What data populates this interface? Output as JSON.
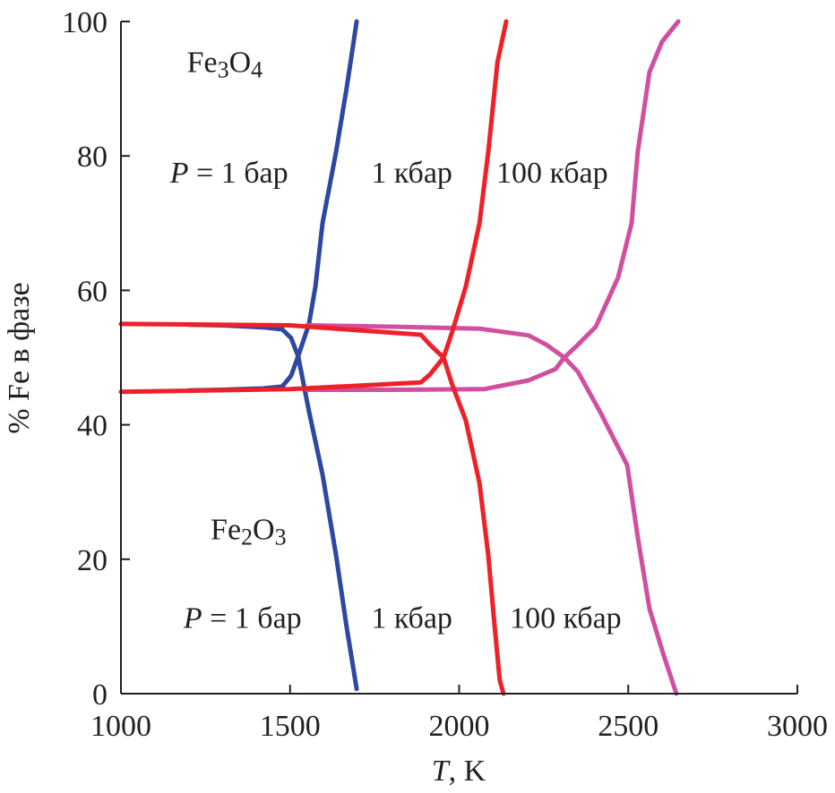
{
  "chart_data": {
    "type": "line",
    "xlabel": "T, K",
    "ylabel": "% Fe в фазе",
    "xlim": [
      1000,
      3000
    ],
    "ylim": [
      0,
      100
    ],
    "xticks": [
      1000,
      1500,
      2000,
      2500,
      3000
    ],
    "yticks": [
      0,
      20,
      40,
      60,
      80,
      100
    ],
    "grid": false,
    "colors": {
      "p1bar": "#2e47a0",
      "p1kbar": "#ee2028",
      "p100kbar": "#d04fa0"
    },
    "series": [
      {
        "key": "p1bar",
        "color": "#2e47a0",
        "segments": [
          [
            [
              1200,
              54.9
            ],
            [
              1300,
              54.8
            ],
            [
              1420,
              54.5
            ],
            [
              1477,
              54.2
            ],
            [
              1503,
              52.9
            ],
            [
              1524,
              50.2
            ]
          ],
          [
            [
              1200,
              45.1
            ],
            [
              1300,
              45.2
            ],
            [
              1420,
              45.4
            ],
            [
              1477,
              45.7
            ],
            [
              1503,
              47.3
            ],
            [
              1524,
              50.2
            ]
          ],
          [
            [
              1524,
              50.2
            ],
            [
              1556,
              55
            ],
            [
              1575,
              60.6
            ],
            [
              1596,
              70
            ],
            [
              1636,
              80.6
            ],
            [
              1667,
              90
            ],
            [
              1697,
              100
            ]
          ],
          [
            [
              1524,
              50.2
            ],
            [
              1556,
              42
            ],
            [
              1596,
              32.6
            ],
            [
              1636,
              20.6
            ],
            [
              1667,
              10
            ],
            [
              1697,
              0.7
            ]
          ]
        ]
      },
      {
        "key": "p100kbar",
        "color": "#d04fa0",
        "segments": [
          [
            [
              1550,
              54.8
            ],
            [
              1800,
              54.6
            ],
            [
              2060,
              54.3
            ],
            [
              2205,
              53.3
            ],
            [
              2258,
              51.9
            ],
            [
              2311,
              50
            ]
          ],
          [
            [
              1550,
              45.2
            ],
            [
              1800,
              45.2
            ],
            [
              2073,
              45.3
            ],
            [
              2205,
              46.6
            ],
            [
              2285,
              48.3
            ],
            [
              2311,
              50
            ]
          ],
          [
            [
              2311,
              50
            ],
            [
              2351,
              51.9
            ],
            [
              2404,
              54.6
            ],
            [
              2470,
              61.9
            ],
            [
              2510,
              70
            ],
            [
              2528,
              80.6
            ],
            [
              2563,
              92.5
            ],
            [
              2600,
              97
            ],
            [
              2648,
              100
            ]
          ],
          [
            [
              2311,
              50
            ],
            [
              2351,
              47.9
            ],
            [
              2417,
              41.9
            ],
            [
              2497,
              34
            ],
            [
              2528,
              23.3
            ],
            [
              2563,
              12.6
            ],
            [
              2603,
              6
            ],
            [
              2642,
              0
            ]
          ]
        ]
      },
      {
        "key": "p1kbar",
        "color": "#ee2028",
        "segments": [
          [
            [
              1000,
              55
            ],
            [
              1500,
              54.8
            ],
            [
              1887,
              53.4
            ],
            [
              1914,
              51.9
            ],
            [
              1954,
              50
            ]
          ],
          [
            [
              1000,
              44.9
            ],
            [
              1500,
              45.3
            ],
            [
              1887,
              46.3
            ],
            [
              1914,
              47.5
            ],
            [
              1954,
              50
            ]
          ],
          [
            [
              1954,
              50
            ],
            [
              1980,
              53.9
            ],
            [
              2020,
              60.6
            ],
            [
              2060,
              70
            ],
            [
              2086,
              80.6
            ],
            [
              2113,
              93.9
            ],
            [
              2139,
              100
            ]
          ],
          [
            [
              1954,
              50
            ],
            [
              1980,
              45.9
            ],
            [
              2020,
              40.6
            ],
            [
              2060,
              31.3
            ],
            [
              2086,
              20.6
            ],
            [
              2105,
              10
            ],
            [
              2120,
              2
            ],
            [
              2131,
              0
            ]
          ]
        ]
      }
    ],
    "annotations": [
      {
        "text": "Fe3O4",
        "x": 1195,
        "y": 92.5
      },
      {
        "text": "P = 1 бар",
        "x": 1145,
        "y": 76
      },
      {
        "text": "1 кбар",
        "x": 1740,
        "y": 76
      },
      {
        "text": "100 кбар",
        "x": 2110,
        "y": 76
      },
      {
        "text": "Fe2O3",
        "x": 1265,
        "y": 23
      },
      {
        "text": "P = 1 бар",
        "x": 1185,
        "y": 9.8
      },
      {
        "text": "1 кбар",
        "x": 1740,
        "y": 9.8
      },
      {
        "text": "100 кбар",
        "x": 2150,
        "y": 9.8
      }
    ]
  }
}
